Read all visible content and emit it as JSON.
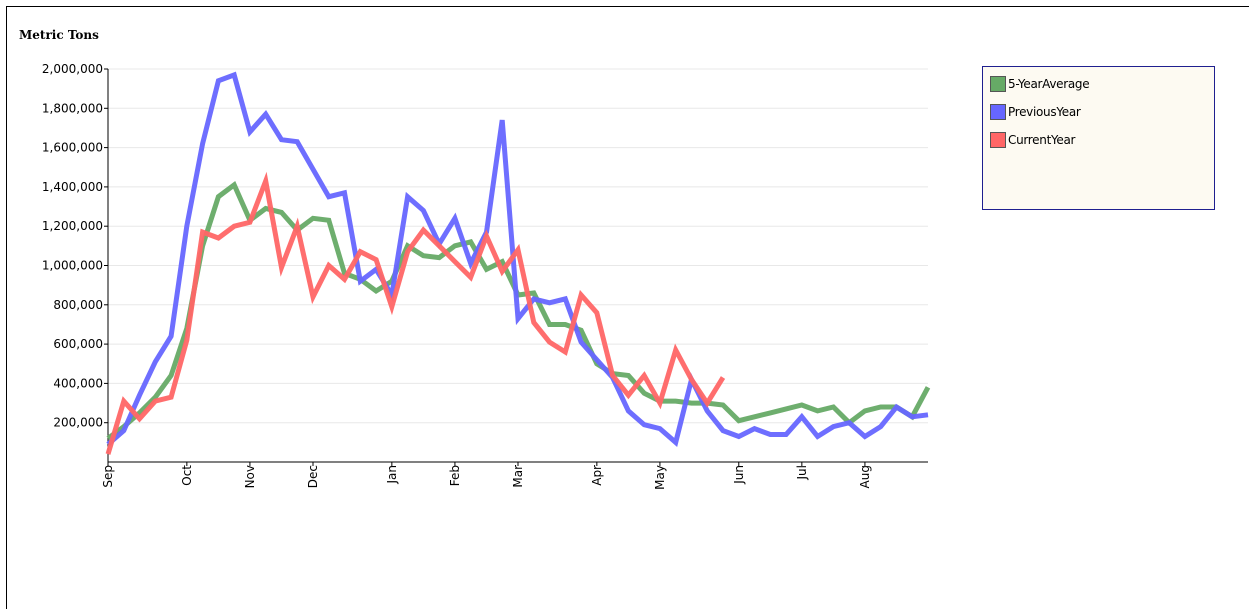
{
  "chart_data": {
    "type": "line",
    "title": "",
    "ylabel": "Metric Tons",
    "xlabel": "",
    "ylim": [
      0,
      2000000
    ],
    "yticks": [
      200000,
      400000,
      600000,
      800000,
      1000000,
      1200000,
      1400000,
      1600000,
      1800000,
      2000000
    ],
    "ytick_labels": [
      "200,000",
      "400,000",
      "600,000",
      "800,000",
      "1,000,000",
      "1,200,000",
      "1,400,000",
      "1,600,000",
      "1,800,000",
      "2,000,000"
    ],
    "x_week_count": 52,
    "month_ticks": [
      {
        "label": "Sep",
        "week": 0
      },
      {
        "label": "Oct",
        "week": 5
      },
      {
        "label": "Nov",
        "week": 9
      },
      {
        "label": "Dec",
        "week": 13
      },
      {
        "label": "Jan",
        "week": 18
      },
      {
        "label": "Feb",
        "week": 22
      },
      {
        "label": "Mar",
        "week": 26
      },
      {
        "label": "Apr",
        "week": 31
      },
      {
        "label": "May",
        "week": 35
      },
      {
        "label": "Jun",
        "week": 40
      },
      {
        "label": "Jul",
        "week": 44
      },
      {
        "label": "Aug",
        "week": 48
      }
    ],
    "grid": true,
    "legend_position": "top-right",
    "series": [
      {
        "name": "5-YearAverage",
        "color": "#66aa66",
        "values": [
          120000,
          180000,
          250000,
          330000,
          440000,
          680000,
          1100000,
          1350000,
          1410000,
          1230000,
          1290000,
          1270000,
          1180000,
          1240000,
          1230000,
          960000,
          930000,
          870000,
          920000,
          1100000,
          1050000,
          1040000,
          1100000,
          1120000,
          980000,
          1020000,
          850000,
          860000,
          700000,
          700000,
          670000,
          500000,
          450000,
          440000,
          350000,
          310000,
          310000,
          300000,
          300000,
          290000,
          210000,
          230000,
          250000,
          270000,
          290000,
          260000,
          280000,
          200000,
          260000,
          280000,
          280000,
          230000,
          380000
        ]
      },
      {
        "name": "PreviousYear",
        "color": "#6666ff",
        "values": [
          90000,
          160000,
          340000,
          510000,
          640000,
          1200000,
          1620000,
          1940000,
          1970000,
          1680000,
          1770000,
          1640000,
          1630000,
          1490000,
          1350000,
          1370000,
          920000,
          980000,
          850000,
          1350000,
          1280000,
          1110000,
          1240000,
          1010000,
          1170000,
          1740000,
          730000,
          830000,
          810000,
          830000,
          610000,
          520000,
          430000,
          260000,
          190000,
          170000,
          100000,
          420000,
          260000,
          160000,
          130000,
          170000,
          140000,
          140000,
          230000,
          130000,
          180000,
          200000,
          130000,
          180000,
          280000,
          230000,
          240000
        ]
      },
      {
        "name": "CurrentYear",
        "color": "#ff6666",
        "values": [
          40000,
          310000,
          220000,
          310000,
          330000,
          620000,
          1170000,
          1140000,
          1200000,
          1220000,
          1430000,
          990000,
          1200000,
          840000,
          1000000,
          930000,
          1070000,
          1030000,
          790000,
          1070000,
          1180000,
          1100000,
          1020000,
          940000,
          1150000,
          970000,
          1080000,
          710000,
          610000,
          560000,
          850000,
          760000,
          440000,
          340000,
          440000,
          300000,
          570000,
          420000,
          300000,
          430000
        ]
      }
    ]
  }
}
